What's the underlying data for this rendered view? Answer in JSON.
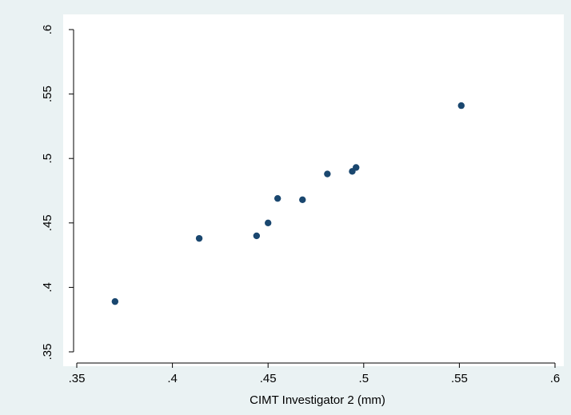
{
  "chart_data": {
    "type": "scatter",
    "title": "",
    "xlabel": "CIMT Investigator 2 (mm)",
    "ylabel": "",
    "xlim": [
      0.35,
      0.6
    ],
    "ylim": [
      0.35,
      0.6
    ],
    "x_ticks": [
      0.35,
      0.4,
      0.45,
      0.5,
      0.55,
      0.6
    ],
    "x_tick_labels": [
      ".35",
      ".4",
      ".45",
      ".5",
      ".55",
      ".6"
    ],
    "y_ticks": [
      0.35,
      0.4,
      0.45,
      0.5,
      0.55,
      0.6
    ],
    "y_tick_labels": [
      ".35",
      ".4",
      ".45",
      ".5",
      ".55",
      ".6"
    ],
    "grid": false,
    "marker_color": "#1a476f",
    "plot_background": "#ffffff",
    "outer_background": "#eaf2f3",
    "series": [
      {
        "x": [
          0.37,
          0.414,
          0.444,
          0.45,
          0.455,
          0.468,
          0.481,
          0.494,
          0.496,
          0.551
        ],
        "y": [
          0.389,
          0.438,
          0.44,
          0.45,
          0.469,
          0.468,
          0.488,
          0.49,
          0.493,
          0.541
        ]
      }
    ]
  }
}
